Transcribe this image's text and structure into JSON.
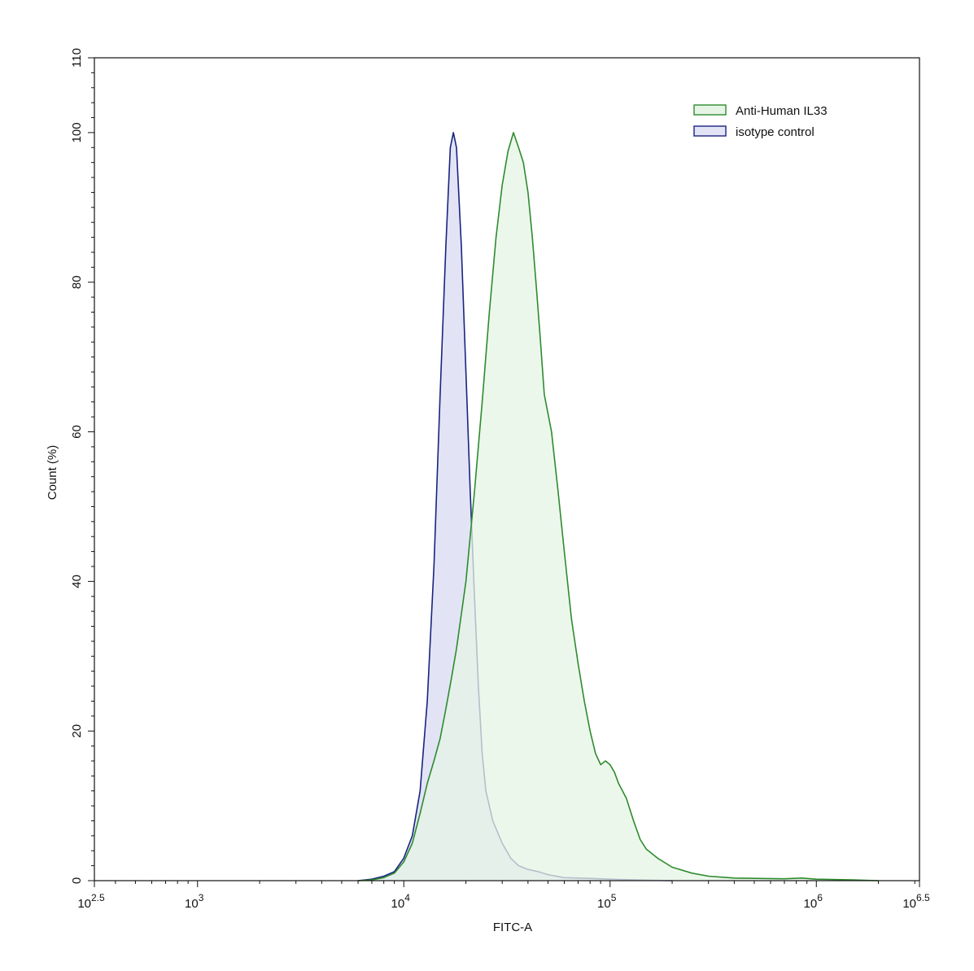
{
  "chart_data": {
    "type": "area",
    "title": "",
    "xlabel": "FITC-A",
    "ylabel": "Count  (%)",
    "x_scale": "log10",
    "xlim": [
      316.23,
      3162278
    ],
    "ylim": [
      0,
      110
    ],
    "grid": false,
    "legend_position": "top-right",
    "x_ticks": [
      {
        "value": 316.23,
        "base": "10",
        "exp": "2.5"
      },
      {
        "value": 1000,
        "base": "10",
        "exp": "3"
      },
      {
        "value": 10000,
        "base": "10",
        "exp": "4"
      },
      {
        "value": 100000,
        "base": "10",
        "exp": "5"
      },
      {
        "value": 1000000,
        "base": "10",
        "exp": "6"
      },
      {
        "value": 3162278,
        "base": "10",
        "exp": "6.5"
      }
    ],
    "y_ticks": [
      "0",
      "20",
      "40",
      "60",
      "80",
      "100",
      "110"
    ],
    "series": [
      {
        "name": "Anti-Human IL33",
        "stroke": "#2e8b2e",
        "fill": "#e6f4e6",
        "points": [
          [
            6000,
            0
          ],
          [
            7000,
            0.1
          ],
          [
            8000,
            0.4
          ],
          [
            9000,
            1
          ],
          [
            10000,
            2.5
          ],
          [
            11000,
            5
          ],
          [
            12000,
            9
          ],
          [
            13000,
            13
          ],
          [
            14000,
            16
          ],
          [
            15000,
            19
          ],
          [
            16000,
            23
          ],
          [
            17000,
            27
          ],
          [
            18000,
            31
          ],
          [
            20000,
            40
          ],
          [
            22000,
            52
          ],
          [
            24000,
            64
          ],
          [
            26000,
            76
          ],
          [
            28000,
            86
          ],
          [
            30000,
            93
          ],
          [
            32000,
            97.5
          ],
          [
            34000,
            100
          ],
          [
            36000,
            98
          ],
          [
            38000,
            96
          ],
          [
            40000,
            92
          ],
          [
            42000,
            86
          ],
          [
            44000,
            79
          ],
          [
            46000,
            72
          ],
          [
            48000,
            65
          ],
          [
            52000,
            60
          ],
          [
            56000,
            52
          ],
          [
            60000,
            44
          ],
          [
            65000,
            35
          ],
          [
            70000,
            29
          ],
          [
            75000,
            24
          ],
          [
            80000,
            20
          ],
          [
            85000,
            17
          ],
          [
            90000,
            15.5
          ],
          [
            95000,
            16
          ],
          [
            100000,
            15.5
          ],
          [
            105000,
            14.5
          ],
          [
            110000,
            13
          ],
          [
            120000,
            11
          ],
          [
            130000,
            8
          ],
          [
            140000,
            5.5
          ],
          [
            150000,
            4.2
          ],
          [
            170000,
            3
          ],
          [
            200000,
            1.8
          ],
          [
            250000,
            1
          ],
          [
            300000,
            0.6
          ],
          [
            400000,
            0.35
          ],
          [
            500000,
            0.3
          ],
          [
            700000,
            0.25
          ],
          [
            850000,
            0.35
          ],
          [
            1000000,
            0.2
          ],
          [
            1500000,
            0.1
          ],
          [
            2000000,
            0
          ]
        ]
      },
      {
        "name": "isotype control",
        "stroke": "#1a237e",
        "fill": "#e2e4f6",
        "points": [
          [
            6000,
            0
          ],
          [
            7000,
            0.2
          ],
          [
            8000,
            0.6
          ],
          [
            9000,
            1.2
          ],
          [
            10000,
            3
          ],
          [
            11000,
            6
          ],
          [
            12000,
            12
          ],
          [
            13000,
            24
          ],
          [
            14000,
            42
          ],
          [
            15000,
            65
          ],
          [
            16000,
            85
          ],
          [
            16800,
            98
          ],
          [
            17400,
            100
          ],
          [
            18000,
            98
          ],
          [
            19000,
            85
          ],
          [
            20000,
            68
          ],
          [
            21000,
            52
          ],
          [
            22000,
            38
          ],
          [
            23000,
            26
          ],
          [
            24000,
            17
          ],
          [
            25000,
            12
          ],
          [
            27000,
            8
          ],
          [
            30000,
            5
          ],
          [
            33000,
            3
          ],
          [
            36000,
            2
          ],
          [
            40000,
            1.5
          ],
          [
            45000,
            1.2
          ],
          [
            50000,
            0.8
          ],
          [
            60000,
            0.4
          ],
          [
            80000,
            0.3
          ],
          [
            100000,
            0.2
          ],
          [
            130000,
            0.1
          ],
          [
            200000,
            0
          ]
        ]
      }
    ]
  }
}
